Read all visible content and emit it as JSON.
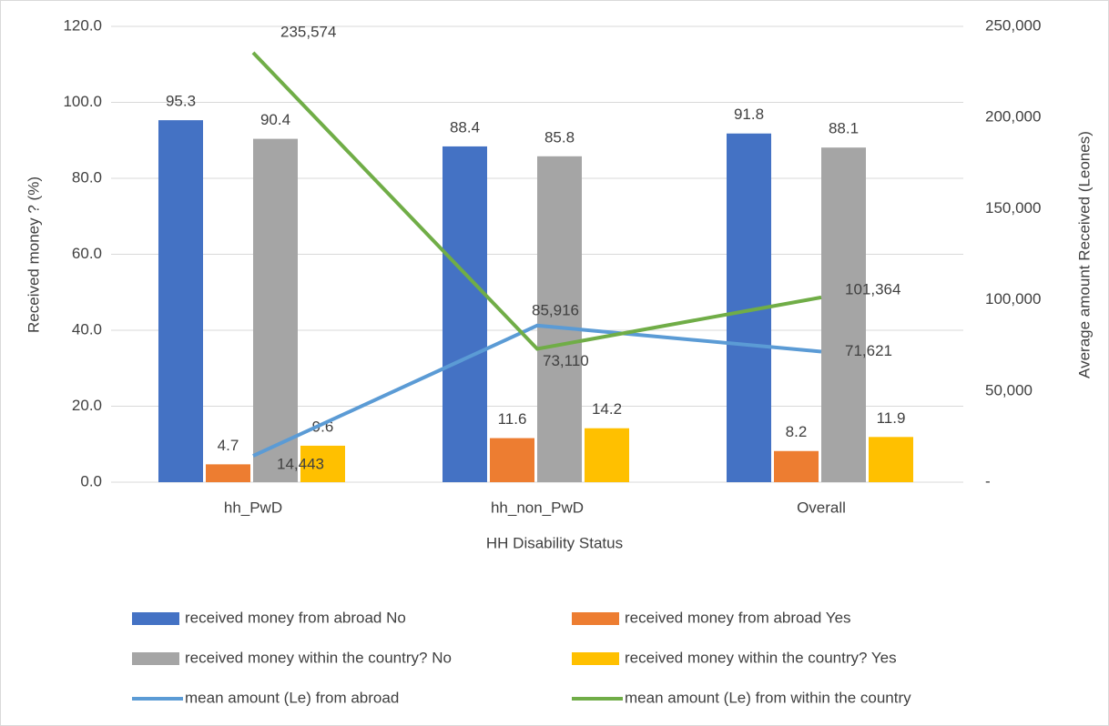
{
  "chart_data": {
    "type": "bar",
    "x_label": "HH Disability Status",
    "y_label": "Received money ? (%)",
    "y2_label": "Average amount Received (Leones)",
    "categories": [
      "hh_PwD",
      "hh_non_PwD",
      "Overall"
    ],
    "series": [
      {
        "name": "received money from abroad No",
        "type": "bar",
        "color": "#4472c4",
        "values": [
          95.3,
          88.4,
          91.8
        ]
      },
      {
        "name": "received money from abroad Yes",
        "type": "bar",
        "color": "#ed7d31",
        "values": [
          4.7,
          11.6,
          8.2
        ]
      },
      {
        "name": "received money within the country? No",
        "type": "bar",
        "color": "#a5a5a5",
        "values": [
          90.4,
          85.8,
          88.1
        ]
      },
      {
        "name": "received money within the country? Yes",
        "type": "bar",
        "color": "#ffc000",
        "values": [
          9.6,
          14.2,
          11.9
        ]
      },
      {
        "name": "mean amount (Le) from abroad",
        "type": "line",
        "axis": "y2",
        "color": "#5b9bd5",
        "values": [
          14443,
          85916,
          71621
        ],
        "value_labels": [
          "14,443",
          "85,916",
          "71,621"
        ]
      },
      {
        "name": "mean amount (Le) from within the country",
        "type": "line",
        "axis": "y2",
        "color": "#70ad47",
        "values": [
          235574,
          73110,
          101364
        ],
        "value_labels": [
          "235,574",
          "73,110",
          "101,364"
        ]
      }
    ],
    "ylim": [
      0,
      120
    ],
    "yticks": [
      {
        "value": 0,
        "label": "0.0"
      },
      {
        "value": 20,
        "label": "20.0"
      },
      {
        "value": 40,
        "label": "40.0"
      },
      {
        "value": 60,
        "label": "60.0"
      },
      {
        "value": 80,
        "label": "80.0"
      },
      {
        "value": 100,
        "label": "100.0"
      },
      {
        "value": 120,
        "label": "120.0"
      }
    ],
    "y2lim": [
      0,
      250000
    ],
    "y2ticks": [
      {
        "value": 0,
        "label": "-"
      },
      {
        "value": 50000,
        "label": "50,000"
      },
      {
        "value": 100000,
        "label": "100,000"
      },
      {
        "value": 150000,
        "label": "150,000"
      },
      {
        "value": 200000,
        "label": "200,000"
      },
      {
        "value": 250000,
        "label": "250,000"
      }
    ],
    "grid": true
  }
}
